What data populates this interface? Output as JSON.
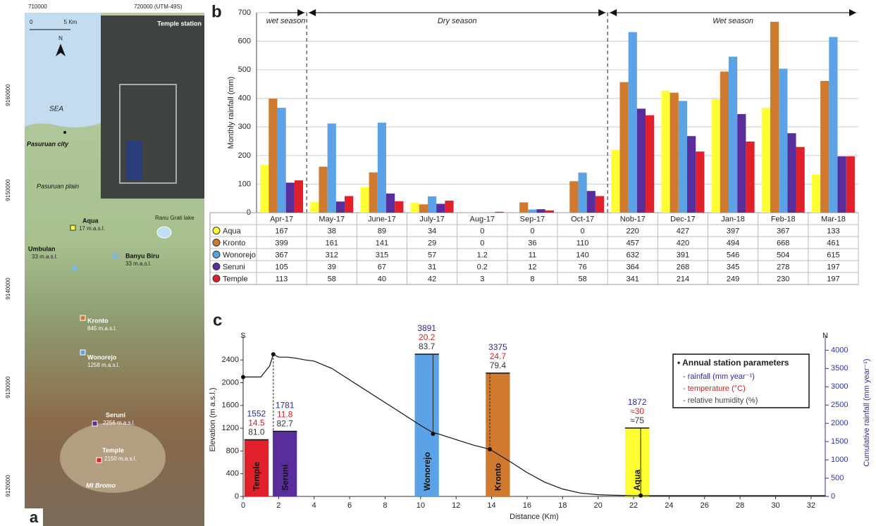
{
  "map": {
    "panel_label": "a",
    "x_ticks": [
      "710000",
      "720000  (UTM-49S)"
    ],
    "y_ticks": [
      "9160000",
      "9150000",
      "9140000",
      "9130000",
      "9120000"
    ],
    "scale": [
      "0",
      "5 Km"
    ],
    "north": "N",
    "photo_title": "Temple station",
    "places": [
      {
        "name": "SEA"
      },
      {
        "name": "Pasuruan city"
      },
      {
        "name": "Pasuruan plain"
      },
      {
        "name": "Aqua",
        "elevation": "17 m.a.s.l."
      },
      {
        "name": "Ranu Grati lake"
      },
      {
        "name": "Umbulan",
        "elevation": "33 m.a.s.l."
      },
      {
        "name": "Banyu Biru",
        "elevation": "33 m.a.s.l."
      },
      {
        "name": "Kronto",
        "elevation": "845 m.a.s.l."
      },
      {
        "name": "Wonorejo",
        "elevation": "1258 m.a.s.l."
      },
      {
        "name": "Seruni",
        "elevation": "2256 m.a.s.l."
      },
      {
        "name": "Temple",
        "elevation": "2150 m.a.s.l."
      },
      {
        "name": "Mt Bromo"
      }
    ]
  },
  "chart_data": [
    {
      "type": "bar",
      "panel_label": "b",
      "y_label": "Monthly rainfall (mm)",
      "seasons": [
        "wet season",
        "Dry season",
        "Wet season"
      ],
      "categories": [
        "Apr-17",
        "May-17",
        "June-17",
        "July-17",
        "Aug-17",
        "Sep-17",
        "Oct-17",
        "Nob-17",
        "Dec-17",
        "Jan-18",
        "Feb-18",
        "Mar-18"
      ],
      "series": [
        {
          "name": "Aqua",
          "color": "#ffff33",
          "values": [
            167,
            38,
            89,
            34,
            0,
            0,
            0,
            220,
            427,
            397,
            367,
            133
          ]
        },
        {
          "name": "Kronto",
          "color": "#d07a30",
          "values": [
            399,
            161,
            141,
            29,
            0,
            36,
            110,
            457,
            420,
            494,
            668,
            461
          ]
        },
        {
          "name": "Wonorejo",
          "color": "#5ba3e6",
          "values": [
            367,
            312,
            315,
            57,
            1.2,
            11,
            140,
            632,
            391,
            546,
            504,
            615
          ]
        },
        {
          "name": "Seruni",
          "color": "#5a2d9c",
          "values": [
            105,
            39,
            67,
            31,
            0.2,
            12,
            76,
            364,
            268,
            345,
            278,
            197
          ]
        },
        {
          "name": "Temple",
          "color": "#e0202a",
          "values": [
            113,
            58,
            40,
            42,
            3,
            8,
            58,
            341,
            214,
            249,
            230,
            197
          ]
        }
      ],
      "ylim": [
        0,
        700
      ],
      "yticks": [
        0,
        100,
        200,
        300,
        400,
        500,
        600,
        700
      ],
      "grid": true
    },
    {
      "type": "line",
      "panel_label": "c",
      "x_label": "Distance (Km)",
      "y_label": "Elevation (m a.s.l.)",
      "y2_label": "Cumulative rainfall (mm year⁻¹)",
      "left_end": "S",
      "right_end": "N",
      "x": [
        0,
        0.5,
        1,
        1.5,
        1.7,
        2,
        2.5,
        3,
        3.5,
        4,
        5,
        6,
        7,
        8,
        9,
        10,
        10.7,
        11,
        12,
        13,
        13.9,
        15,
        16,
        17,
        18,
        19,
        20,
        21,
        22,
        22.4,
        24,
        26,
        28,
        30,
        32,
        32.8
      ],
      "values": [
        2100,
        2100,
        2100,
        2300,
        2500,
        2450,
        2450,
        2430,
        2400,
        2380,
        2250,
        2050,
        1850,
        1650,
        1450,
        1250,
        1120,
        1100,
        1000,
        900,
        830,
        620,
        420,
        250,
        130,
        60,
        30,
        20,
        15,
        15,
        15,
        15,
        15,
        15,
        15,
        15
      ],
      "color": "#111111",
      "stations": {
        "names": [
          "Temple",
          "Seruni",
          "Wonorejo",
          "Kronto",
          "Aqua"
        ],
        "colors": [
          "#e0202a",
          "#5a2d9c",
          "#5ba3e6",
          "#d07a30",
          "#ffff33"
        ],
        "x": [
          0.75,
          2.35,
          10.35,
          14.35,
          22.2
        ],
        "values": [
          1552,
          1781,
          3891,
          3375,
          1872
        ],
        "axis": "y2",
        "temperature_labels": [
          "14.5",
          "11.8",
          "20.2",
          "24.7",
          "≈30"
        ],
        "humidity_labels": [
          "81.0",
          "82.7",
          "83.7",
          "79.4",
          "≈75"
        ],
        "profile_x": [
          0,
          1.7,
          10.7,
          13.9,
          22.4
        ],
        "profile_elevation": [
          2100,
          2500,
          1100,
          830,
          15
        ]
      },
      "legend": {
        "title": "• Annual station parameters",
        "items": [
          "- rainfall (mm year⁻¹)",
          "- temperature (°C)",
          "- relative humidity (%)"
        ],
        "colors": [
          "#2b2b8f",
          "#d02020",
          "#444444"
        ]
      },
      "xlim": [
        0,
        32.8
      ],
      "xticks": [
        0,
        2,
        4,
        6,
        8,
        10,
        12,
        14,
        16,
        18,
        20,
        22,
        24,
        26,
        28,
        30,
        32
      ],
      "ylim": [
        0,
        2700
      ],
      "yticks": [
        0,
        400,
        800,
        1200,
        1600,
        2000,
        2400
      ],
      "y2lim": [
        0,
        4200
      ],
      "y2ticks": [
        0,
        500,
        1000,
        1500,
        2000,
        2500,
        3000,
        3500,
        4000
      ]
    }
  ]
}
